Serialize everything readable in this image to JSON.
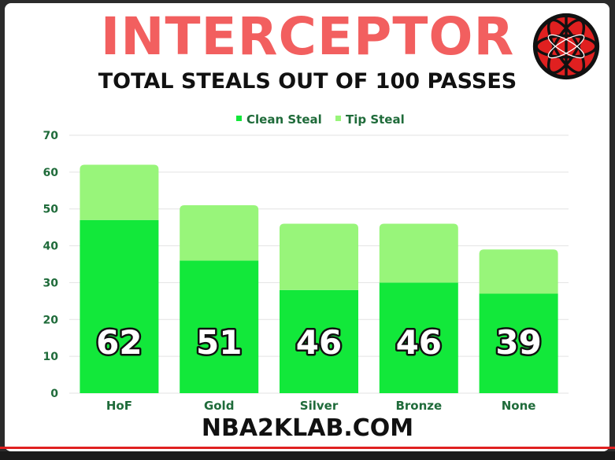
{
  "header": {
    "title": "INTERCEPTOR",
    "subtitle": "TOTAL STEALS OUT OF 100 PASSES"
  },
  "footer": {
    "site": "NBA2KLAB.COM"
  },
  "logo": {
    "icon": "basketball-logo-icon",
    "color": "#e02020"
  },
  "colors": {
    "clean": "#12e83a",
    "tip": "#98f57a",
    "grid": "#e3e3e3",
    "tick_text": "#1f6b3a",
    "title": "#f25f5f"
  },
  "chart_data": {
    "type": "bar",
    "stacked": true,
    "categories": [
      "HoF",
      "Gold",
      "Silver",
      "Bronze",
      "None"
    ],
    "series": [
      {
        "name": "Clean Steal",
        "values": [
          47,
          36,
          28,
          30,
          27
        ]
      },
      {
        "name": "Tip Steal",
        "values": [
          15,
          15,
          18,
          16,
          12
        ]
      }
    ],
    "totals": [
      "62",
      "51",
      "46",
      "46",
      "39"
    ],
    "ylim": [
      0,
      70
    ],
    "yticks": [
      "0",
      "10",
      "20",
      "30",
      "40",
      "50",
      "60",
      "70"
    ],
    "grid": true,
    "legend": "top-center",
    "xlabel": "",
    "ylabel": ""
  }
}
